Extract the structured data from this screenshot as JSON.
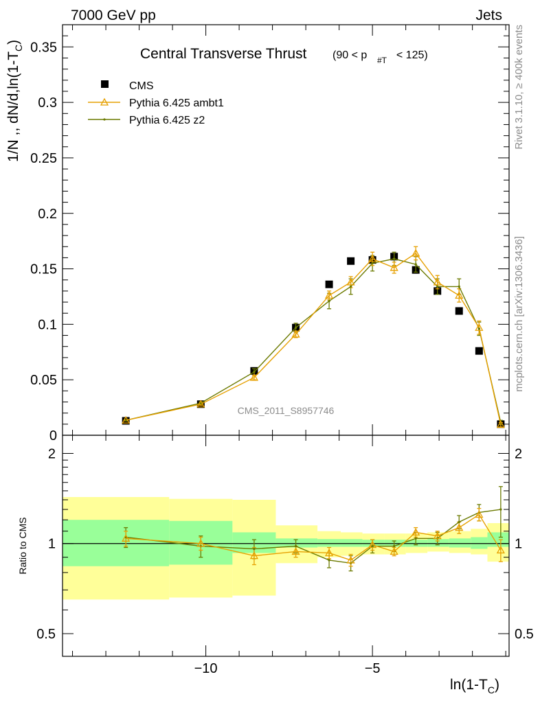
{
  "header": {
    "left": "7000 GeV pp",
    "right": "Jets"
  },
  "side": {
    "rivet": "Rivet 3.1.10, ≥ 400k events",
    "mcplots": "mcplots.cern.ch [arXiv:1306.3436]"
  },
  "watermark": "CMS_2011_S8957746",
  "chart_data": [
    {
      "type": "scatter",
      "title": "Central Transverse Thrust",
      "title_cut": {
        "pre": "(90 < p",
        "sub": "#T",
        "post": "  < 125)"
      },
      "ylabel": "1/N ,, dN/d,ln(1-T",
      "ylabel_sub": "C",
      "ylabel_close": ")",
      "ylim": [
        0,
        0.37
      ],
      "y_ticks": [
        0,
        0.05,
        0.1,
        0.15,
        0.2,
        0.25,
        0.3,
        0.35
      ],
      "y_tick_labels": [
        "0",
        "0.05",
        "0.1",
        "0.15",
        "0.2",
        "0.25",
        "0.3",
        "0.35"
      ],
      "xlim": [
        -14.3,
        -0.9
      ],
      "legend": {
        "placement": "top-left"
      },
      "series": [
        {
          "name": "CMS",
          "color": "#000000",
          "marker": "square",
          "x": [
            -12.4,
            -10.15,
            -8.55,
            -7.3,
            -6.3,
            -5.65,
            -5.0,
            -4.35,
            -3.7,
            -3.05,
            -2.4,
            -1.8,
            -1.15
          ],
          "values": [
            0.013,
            0.028,
            0.058,
            0.097,
            0.136,
            0.157,
            0.158,
            0.161,
            0.149,
            0.13,
            0.112,
            0.076,
            0.01
          ]
        },
        {
          "name": "Pythia 6.425 ambt1",
          "color": "#e6a000",
          "marker": "triangle",
          "x": [
            -12.4,
            -10.15,
            -8.55,
            -7.3,
            -6.3,
            -5.65,
            -5.0,
            -4.35,
            -3.7,
            -3.05,
            -2.4,
            -1.8,
            -1.15
          ],
          "values": [
            0.0135,
            0.028,
            0.052,
            0.091,
            0.126,
            0.138,
            0.159,
            0.151,
            0.164,
            0.138,
            0.126,
            0.097,
            0.0095
          ],
          "errors": [
            0.0005,
            0.001,
            0.002,
            0.003,
            0.004,
            0.005,
            0.006,
            0.005,
            0.006,
            0.006,
            0.006,
            0.006,
            0.002
          ]
        },
        {
          "name": "Pythia 6.425 z2",
          "color": "#6b7a00",
          "marker": "dot",
          "x": [
            -12.4,
            -10.15,
            -8.55,
            -7.3,
            -6.3,
            -5.65,
            -5.0,
            -4.35,
            -3.7,
            -3.05,
            -2.4,
            -1.8,
            -1.15
          ],
          "values": [
            0.0135,
            0.029,
            0.057,
            0.097,
            0.121,
            0.134,
            0.155,
            0.159,
            0.154,
            0.134,
            0.134,
            0.096,
            0.0115
          ],
          "errors": [
            0.0006,
            0.0012,
            0.003,
            0.004,
            0.007,
            0.007,
            0.007,
            0.006,
            0.007,
            0.007,
            0.007,
            0.006,
            0.002
          ]
        }
      ]
    },
    {
      "type": "line",
      "ylabel": "Ratio to CMS",
      "ylim": [
        0.42,
        2.3
      ],
      "y_scale": "log",
      "y_ticks": [
        0.5,
        1,
        2
      ],
      "y_tick_labels": [
        "0.5",
        "1",
        "2"
      ],
      "xlim": [
        -14.3,
        -0.9
      ],
      "x_ticks": [
        -10,
        -5
      ],
      "x_tick_labels": [
        "−10",
        "−5"
      ],
      "xlabel": "ln(1-T",
      "xlabel_sub": "C",
      "xlabel_close": ")",
      "reference_line": 1,
      "bins": [
        -14.3,
        -11.1,
        -9.2,
        -7.9,
        -6.65,
        -5.95,
        -5.3,
        -4.65,
        -4.0,
        -3.35,
        -2.7,
        -2.05,
        -1.55,
        -0.9
      ],
      "band_inner": {
        "color": "#99ff99",
        "lo": [
          0.84,
          0.85,
          0.93,
          0.97,
          0.975,
          0.975,
          0.975,
          0.975,
          0.975,
          0.975,
          0.97,
          0.96,
          0.975
        ],
        "hi": [
          1.2,
          1.19,
          1.09,
          1.04,
          1.035,
          1.035,
          1.03,
          1.03,
          1.03,
          1.035,
          1.04,
          1.05,
          1.09
        ]
      },
      "band_outer": {
        "color": "#ffff99",
        "lo": [
          0.65,
          0.66,
          0.67,
          0.86,
          0.9,
          0.91,
          0.92,
          0.92,
          0.93,
          0.94,
          0.93,
          0.92,
          0.87
        ],
        "hi": [
          1.43,
          1.41,
          1.4,
          1.15,
          1.1,
          1.09,
          1.08,
          1.08,
          1.08,
          1.09,
          1.1,
          1.12,
          1.17
        ]
      },
      "series": [
        {
          "name": "Pythia 6.425 ambt1",
          "color": "#e6a000",
          "marker": "triangle",
          "x": [
            -12.4,
            -10.15,
            -8.55,
            -7.3,
            -6.3,
            -5.65,
            -5.0,
            -4.35,
            -3.7,
            -3.05,
            -2.4,
            -1.8,
            -1.15
          ],
          "values": [
            1.04,
            1.0,
            0.91,
            0.94,
            0.93,
            0.88,
            0.99,
            0.94,
            1.09,
            1.06,
            1.13,
            1.25,
            0.95
          ],
          "errors": [
            0.06,
            0.05,
            0.06,
            0.04,
            0.04,
            0.04,
            0.04,
            0.03,
            0.04,
            0.04,
            0.05,
            0.06,
            0.08
          ]
        },
        {
          "name": "Pythia 6.425 z2",
          "color": "#6b7a00",
          "marker": "dot",
          "x": [
            -12.4,
            -10.15,
            -8.55,
            -7.3,
            -6.3,
            -5.65,
            -5.0,
            -4.35,
            -3.7,
            -3.05,
            -2.4,
            -1.8,
            -1.15
          ],
          "values": [
            1.05,
            0.98,
            0.96,
            0.98,
            0.88,
            0.86,
            0.98,
            0.98,
            1.04,
            1.04,
            1.18,
            1.27,
            1.3
          ],
          "errors": [
            0.08,
            0.08,
            0.07,
            0.05,
            0.05,
            0.05,
            0.05,
            0.04,
            0.05,
            0.05,
            0.06,
            0.08,
            0.25
          ]
        }
      ]
    }
  ]
}
